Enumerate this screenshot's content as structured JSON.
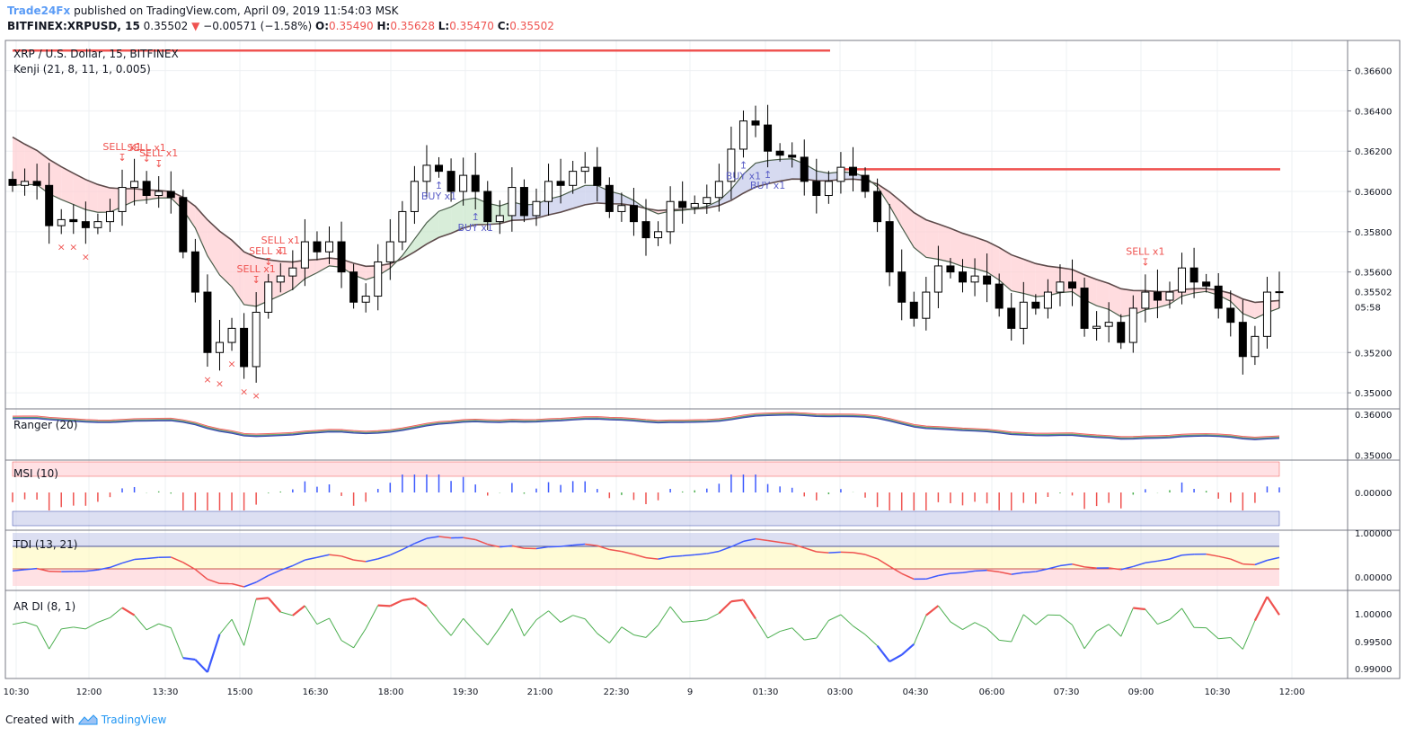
{
  "header": {
    "publisher": "Trade24Fx",
    "published_text": "published on TradingView.com, April 09, 2019 11:54:03 MSK",
    "symbol": "BITFINEX:XRPUSD, 15",
    "last": "0.35502",
    "change": "−0.00571 (−1.58%)",
    "open_label": "O:",
    "open": "0.35490",
    "high_label": "H:",
    "high": "0.35628",
    "low_label": "L:",
    "low": "0.35470",
    "close_label": "C:",
    "close": "0.35502"
  },
  "footer": {
    "created_with": "Created with",
    "brand": "TradingView"
  },
  "panes": {
    "main": {
      "title": "XRP / U.S. Dollar, 15, BITFINEX",
      "indicator": "Kenji (21, 8, 11, 1, 0.005)",
      "ticks": [
        "0.36600",
        "0.36400",
        "0.36200",
        "0.36000",
        "0.35800",
        "0.35600",
        "0.35200",
        "0.35000"
      ],
      "last_price": "0.35502",
      "countdown": "05:58",
      "zero_tick": "0"
    },
    "ranger": {
      "title": "Ranger (20)",
      "ticks": [
        "0.36000",
        "0.35000"
      ]
    },
    "msi": {
      "title": "MSI (10)",
      "ticks": [
        "0.00000"
      ]
    },
    "tdi": {
      "title": "TDI (13, 21)",
      "ticks": [
        "1.00000",
        "0.00000"
      ]
    },
    "ardi": {
      "title": "AR DI (8, 1)",
      "ticks": [
        "1.00000",
        "0.99500",
        "0.99000"
      ]
    }
  },
  "time_axis": [
    "10:30",
    "12:00",
    "13:30",
    "15:00",
    "16:30",
    "18:00",
    "19:30",
    "21:00",
    "22:30",
    "9",
    "01:30",
    "03:00",
    "04:30",
    "06:00",
    "07:30",
    "09:00",
    "10:30",
    "12:00"
  ],
  "signals": {
    "sell": [
      "SELL x1",
      "SELL x1",
      "SELL x1",
      "SELL x1",
      "SELL x1",
      "SELL x1",
      "SELL x1"
    ],
    "buy": [
      "BUY x1",
      "BUY x1",
      "BUY x1",
      "BUY x1"
    ]
  },
  "colors": {
    "up_fill": "#ffffff",
    "down_fill": "#000000",
    "sell": "#ef5350",
    "buy": "#5b5fc7",
    "green_band": "#c8e6c9",
    "red_band": "#ffcdd2",
    "blue_band": "#c5cae9",
    "resistance": "#ef5350"
  },
  "chart_data": {
    "type": "candlestick",
    "symbol": "XRP / U.S. Dollar",
    "interval": "15",
    "ylim": [
      0.3492,
      0.3675
    ],
    "ohlc_last": {
      "open": 0.3549,
      "high": 0.35628,
      "low": 0.3547,
      "close": 0.35502
    },
    "resistance_levels": [
      0.367,
      0.3611
    ],
    "closes": [
      0.3603,
      0.3605,
      0.3603,
      0.3583,
      0.3586,
      0.3585,
      0.3582,
      0.3585,
      0.359,
      0.3602,
      0.3605,
      0.3598,
      0.36,
      0.3597,
      0.357,
      0.355,
      0.352,
      0.3525,
      0.3532,
      0.3513,
      0.354,
      0.3555,
      0.3558,
      0.3562,
      0.3575,
      0.357,
      0.3575,
      0.356,
      0.3545,
      0.3548,
      0.3565,
      0.3575,
      0.359,
      0.3605,
      0.3613,
      0.361,
      0.36,
      0.3608,
      0.36,
      0.3585,
      0.3588,
      0.3602,
      0.3588,
      0.3595,
      0.3605,
      0.3603,
      0.361,
      0.3612,
      0.3603,
      0.359,
      0.3593,
      0.3585,
      0.3577,
      0.358,
      0.3595,
      0.3592,
      0.3594,
      0.3597,
      0.3605,
      0.3621,
      0.3635,
      0.3633,
      0.362,
      0.3618,
      0.3617,
      0.3605,
      0.3598,
      0.3605,
      0.3612,
      0.3608,
      0.36,
      0.3585,
      0.356,
      0.3545,
      0.3537,
      0.355,
      0.3563,
      0.356,
      0.3555,
      0.3558,
      0.3554,
      0.3542,
      0.3532,
      0.3545,
      0.3542,
      0.355,
      0.3555,
      0.3552,
      0.3532,
      0.3533,
      0.3535,
      0.3525,
      0.3542,
      0.355,
      0.3546,
      0.355,
      0.3562,
      0.3555,
      0.3553,
      0.3542,
      0.3535,
      0.3518,
      0.3528,
      0.355,
      0.35502
    ]
  }
}
